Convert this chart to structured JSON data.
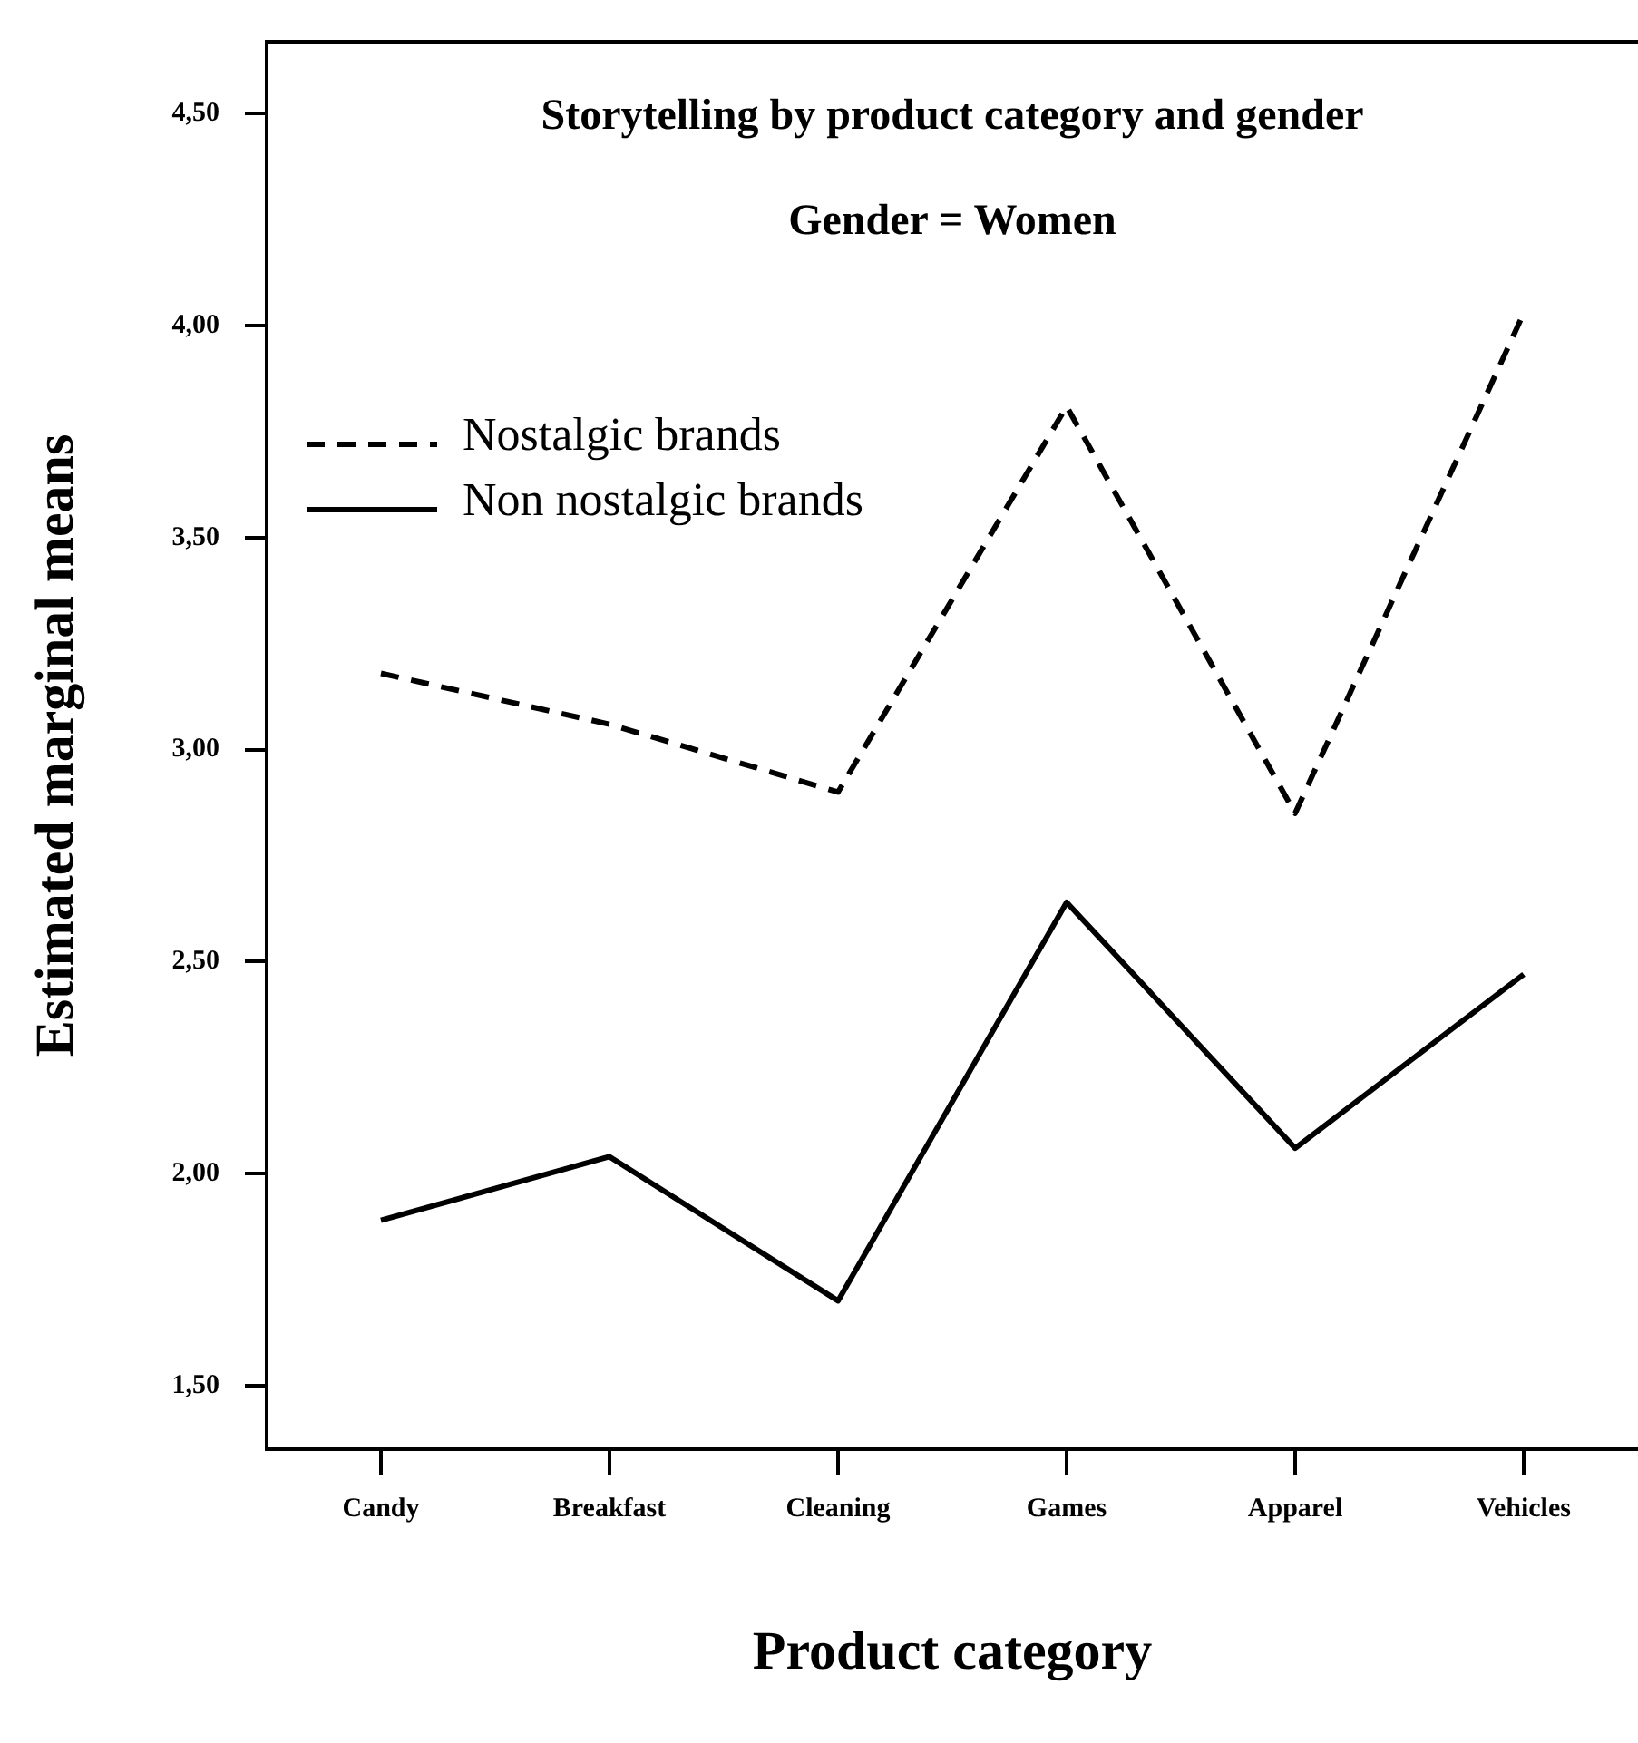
{
  "chart_data": {
    "type": "line",
    "title": "Storytelling by product category and gender",
    "subtitle": "Gender = Women",
    "xlabel": "Product category",
    "ylabel": "Estimated marginal means",
    "categories": [
      "Candy",
      "Breakfast",
      "Cleaning",
      "Games",
      "Apparel",
      "Vehicles"
    ],
    "series": [
      {
        "name": "Nostalgic brands",
        "color": "#000000",
        "line_style": "dashed",
        "values": [
          3.18,
          3.06,
          2.9,
          3.81,
          2.85,
          4.03
        ]
      },
      {
        "name": "Non nostalgic brands",
        "color": "#000000",
        "line_style": "solid",
        "values": [
          1.89,
          2.04,
          1.7,
          2.64,
          2.06,
          2.47
        ]
      }
    ],
    "ylim": [
      1.35,
      4.67
    ],
    "yticks": [
      {
        "value": 1.5,
        "label": "1,50"
      },
      {
        "value": 2,
        "label": "2,00"
      },
      {
        "value": 2.5,
        "label": "2,50"
      },
      {
        "value": 3,
        "label": "3,00"
      },
      {
        "value": 3.5,
        "label": "3,50"
      },
      {
        "value": 4,
        "label": "4,00"
      },
      {
        "value": 4.5,
        "label": "4,50"
      }
    ],
    "grid": false,
    "legend": "top left",
    "marker": "none"
  }
}
